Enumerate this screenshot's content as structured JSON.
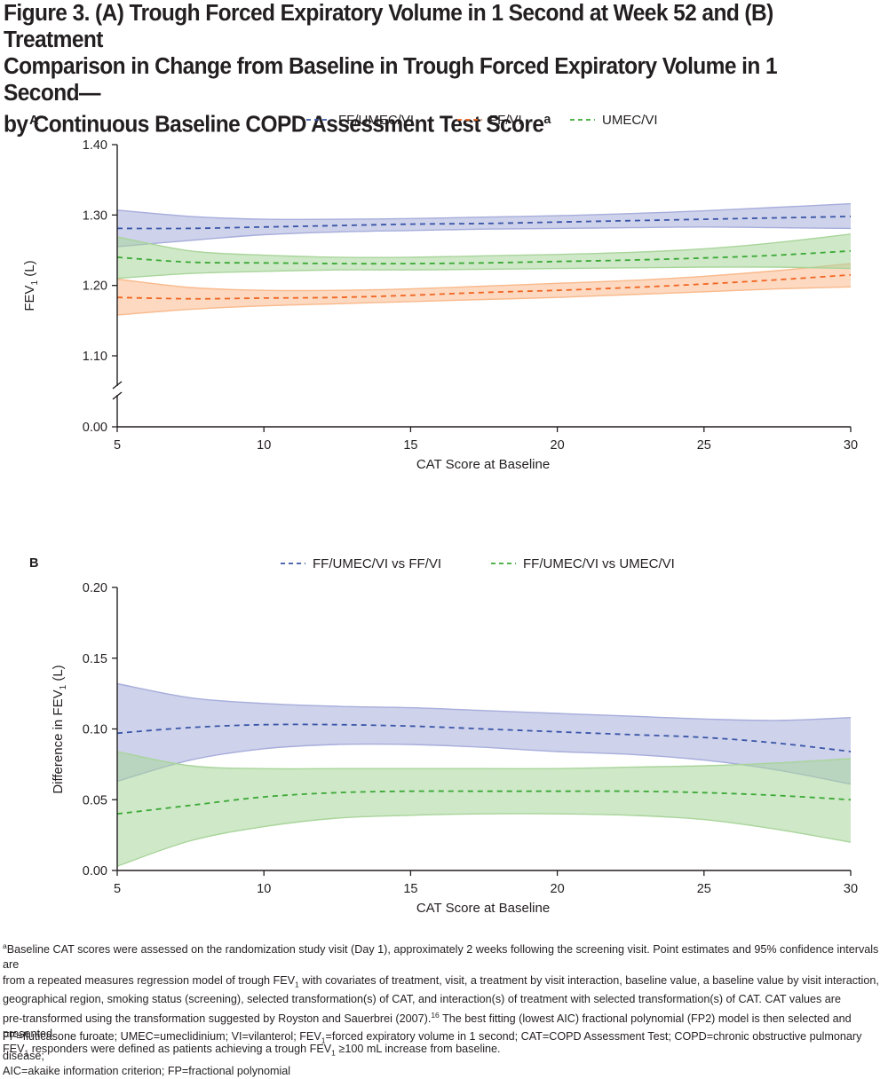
{
  "figure": {
    "title_line1": "Figure 3. (A) Trough Forced Expiratory Volume in 1 Second at Week 52 and (B) Treatment",
    "title_line2": "Comparison in Change from Baseline in Trough Forced Expiratory Volume in 1 Second—",
    "title_line3": "by Continuous Baseline COPD Assessment Test Score",
    "title_sup": "a"
  },
  "colors": {
    "blue": "#3a56a8",
    "orange": "#f26522",
    "green": "#3aa935",
    "blue_band": "#a6addb",
    "orange_band": "#f9b98c",
    "green_band": "#a8d59a",
    "axis": "#231f20"
  },
  "chart_data": [
    {
      "panel_label": "A",
      "type": "line",
      "xlabel": "CAT Score at Baseline",
      "ylabel_main": "FEV",
      "ylabel_sub": "1",
      "ylabel_unit": " (L)",
      "xlim": [
        5,
        30
      ],
      "xticks": [
        "5",
        "10",
        "15",
        "20",
        "25",
        "30"
      ],
      "yticks": [
        "1.40",
        "1.30",
        "1.20",
        "1.10",
        "0.00"
      ],
      "y_axis_break": true,
      "legend_position": "top",
      "x": [
        5,
        7.5,
        10,
        12.5,
        15,
        17.5,
        20,
        22.5,
        25,
        27.5,
        30
      ],
      "series": [
        {
          "name": "FF/UMEC/VI",
          "color": "#3a56a8",
          "values": [
            1.281,
            1.281,
            1.283,
            1.285,
            1.287,
            1.288,
            1.29,
            1.292,
            1.294,
            1.296,
            1.298
          ],
          "ci_upper": [
            1.307,
            1.298,
            1.294,
            1.294,
            1.295,
            1.297,
            1.299,
            1.302,
            1.306,
            1.311,
            1.316
          ],
          "ci_lower": [
            1.255,
            1.264,
            1.272,
            1.276,
            1.278,
            1.28,
            1.281,
            1.282,
            1.283,
            1.282,
            1.281
          ]
        },
        {
          "name": "FF/VI",
          "color": "#f26522",
          "values": [
            1.183,
            1.181,
            1.182,
            1.183,
            1.186,
            1.19,
            1.193,
            1.197,
            1.202,
            1.208,
            1.215
          ],
          "ci_upper": [
            1.209,
            1.197,
            1.193,
            1.193,
            1.195,
            1.199,
            1.203,
            1.207,
            1.213,
            1.221,
            1.231
          ],
          "ci_lower": [
            1.158,
            1.166,
            1.171,
            1.174,
            1.177,
            1.18,
            1.183,
            1.187,
            1.191,
            1.195,
            1.198
          ]
        },
        {
          "name": "UMEC/VI",
          "color": "#3aa935",
          "values": [
            1.24,
            1.233,
            1.232,
            1.231,
            1.231,
            1.232,
            1.234,
            1.236,
            1.239,
            1.243,
            1.249
          ],
          "ci_upper": [
            1.269,
            1.249,
            1.243,
            1.24,
            1.24,
            1.242,
            1.244,
            1.247,
            1.252,
            1.261,
            1.273
          ],
          "ci_lower": [
            1.21,
            1.217,
            1.22,
            1.222,
            1.222,
            1.223,
            1.224,
            1.225,
            1.226,
            1.226,
            1.224
          ]
        }
      ]
    },
    {
      "panel_label": "B",
      "type": "line",
      "xlabel": "CAT Score at Baseline",
      "ylabel_main": "Difference in FEV",
      "ylabel_sub": "1",
      "ylabel_unit": " (L)",
      "xlim": [
        5,
        30
      ],
      "ylim": [
        0,
        0.2
      ],
      "xticks": [
        "5",
        "10",
        "15",
        "20",
        "25",
        "30"
      ],
      "yticks": [
        "0.20",
        "0.15",
        "0.10",
        "0.05",
        "0.00"
      ],
      "legend_position": "top",
      "x": [
        5,
        7.5,
        10,
        12.5,
        15,
        17.5,
        20,
        22.5,
        25,
        27.5,
        30
      ],
      "series": [
        {
          "name": "FF/UMEC/VI vs FF/VI",
          "color": "#3a56a8",
          "values": [
            0.097,
            0.101,
            0.103,
            0.103,
            0.102,
            0.1,
            0.098,
            0.096,
            0.094,
            0.09,
            0.084
          ],
          "ci_upper": [
            0.132,
            0.122,
            0.118,
            0.116,
            0.115,
            0.113,
            0.111,
            0.109,
            0.107,
            0.106,
            0.108
          ],
          "ci_lower": [
            0.063,
            0.078,
            0.086,
            0.089,
            0.089,
            0.087,
            0.084,
            0.082,
            0.078,
            0.071,
            0.061
          ]
        },
        {
          "name": "FF/UMEC/VI vs UMEC/VI",
          "color": "#3aa935",
          "values": [
            0.04,
            0.046,
            0.052,
            0.055,
            0.056,
            0.056,
            0.056,
            0.056,
            0.055,
            0.053,
            0.05
          ],
          "ci_upper": [
            0.084,
            0.074,
            0.072,
            0.072,
            0.072,
            0.072,
            0.072,
            0.073,
            0.074,
            0.076,
            0.079
          ],
          "ci_lower": [
            0.003,
            0.021,
            0.031,
            0.037,
            0.039,
            0.04,
            0.04,
            0.039,
            0.036,
            0.029,
            0.02
          ]
        }
      ]
    }
  ],
  "footnotes": {
    "a_mark": "a",
    "a_line1": "Baseline CAT scores were assessed on the randomization study visit (Day 1), approximately 2 weeks following the screening visit. Point estimates and 95% confidence intervals are",
    "a_line2_pre": "from a repeated measures regression model of trough FEV",
    "a_line2_sub": "1",
    "a_line2_post": " with covariates of treatment, visit, a treatment by visit interaction, baseline value, a baseline value by visit interaction,",
    "a_line3": "geographical region, smoking status (screening), selected transformation(s) of CAT, and interaction(s) of treatment with selected transformation(s) of CAT. CAT values are",
    "a_line4_pre": "pre-transformed using the transformation suggested by Royston and Sauerbrei (2007).",
    "a_line4_ref": "16",
    "a_line4_post": " The best fitting (lowest AIC) fractional polynomial (FP2) model is then selected and presented.",
    "a_line5_p1": "FEV",
    "a_line5_sub1": "1",
    "a_line5_p2": " responders were defined as patients achieving a trough FEV",
    "a_line5_sub2": "1",
    "a_line5_p3": " ≥100 mL increase from baseline.",
    "abbr_line1_pre": "FF=fluticasone furoate; UMEC=umeclidinium; VI=vilanterol; FEV",
    "abbr_line1_sub": "1",
    "abbr_line1_post": "=forced expiratory volume in 1 second; CAT=COPD Assessment Test; COPD=chronic obstructive pulmonary disease;",
    "abbr_line2": "AIC=akaike information criterion; FP=fractional polynomial"
  }
}
